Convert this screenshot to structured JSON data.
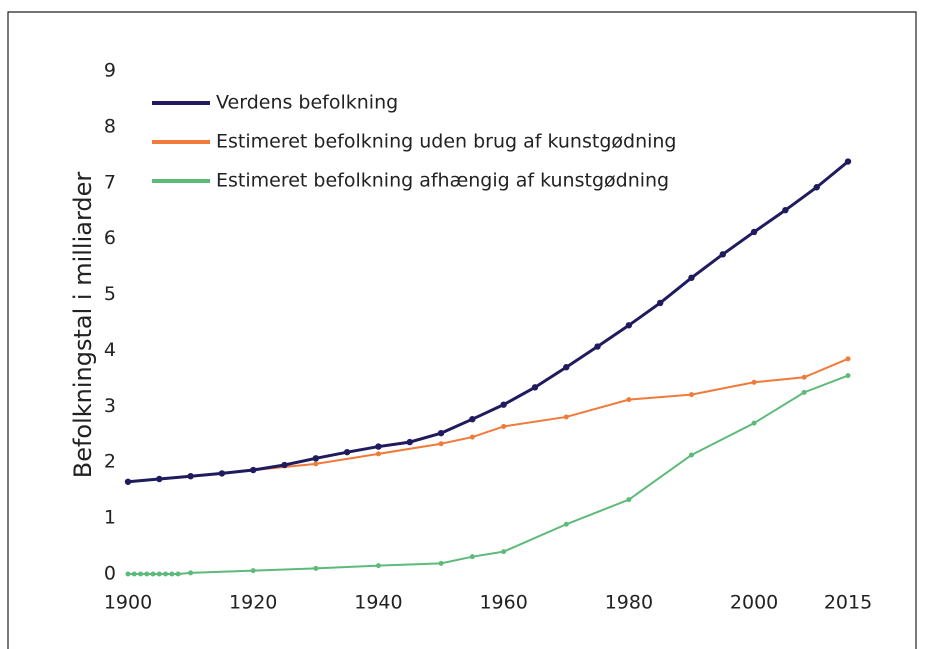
{
  "chart_data": {
    "type": "line",
    "y_label": "Befolkningstal i milliarder",
    "xlim": [
      1900,
      2015
    ],
    "xticks": [
      1900,
      1920,
      1940,
      1960,
      1980,
      2000,
      2015
    ],
    "ylim": [
      0,
      9
    ],
    "yticks": [
      0,
      1,
      2,
      3,
      4,
      5,
      6,
      7,
      8,
      9
    ],
    "legend": "upper left",
    "series": [
      {
        "name": "Verdens befolkning",
        "color": "#1f1b5e",
        "x": [
          1900,
          1905,
          1910,
          1915,
          1920,
          1925,
          1930,
          1935,
          1940,
          1945,
          1950,
          1955,
          1960,
          1965,
          1970,
          1975,
          1980,
          1985,
          1990,
          1995,
          2000,
          2005,
          2010,
          2015
        ],
        "values": [
          1.65,
          1.7,
          1.75,
          1.8,
          1.86,
          1.95,
          2.07,
          2.18,
          2.28,
          2.36,
          2.52,
          2.77,
          3.03,
          3.34,
          3.7,
          4.07,
          4.45,
          4.85,
          5.3,
          5.72,
          6.12,
          6.51,
          6.92,
          7.38
        ]
      },
      {
        "name": "Estimeret befolkning uden brug af kunstgødning",
        "color": "#f07a3a",
        "x": [
          1920,
          1930,
          1940,
          1950,
          1955,
          1960,
          1970,
          1980,
          1990,
          2000,
          2008,
          2015
        ],
        "values": [
          1.86,
          1.97,
          2.15,
          2.33,
          2.45,
          2.64,
          2.81,
          3.12,
          3.21,
          3.43,
          3.52,
          3.85
        ]
      },
      {
        "name": "Estimeret befolkning afhængig af kunstgødning",
        "color": "#5dbb7a",
        "x": [
          1900,
          1901,
          1902,
          1903,
          1904,
          1905,
          1906,
          1907,
          1908,
          1910,
          1920,
          1930,
          1940,
          1950,
          1955,
          1960,
          1970,
          1980,
          1990,
          2000,
          2008,
          2015
        ],
        "values": [
          0,
          0,
          0,
          0,
          0,
          0,
          0,
          0,
          0,
          0.02,
          0.06,
          0.1,
          0.15,
          0.19,
          0.31,
          0.4,
          0.89,
          1.33,
          2.13,
          2.7,
          3.25,
          3.55
        ]
      }
    ]
  }
}
